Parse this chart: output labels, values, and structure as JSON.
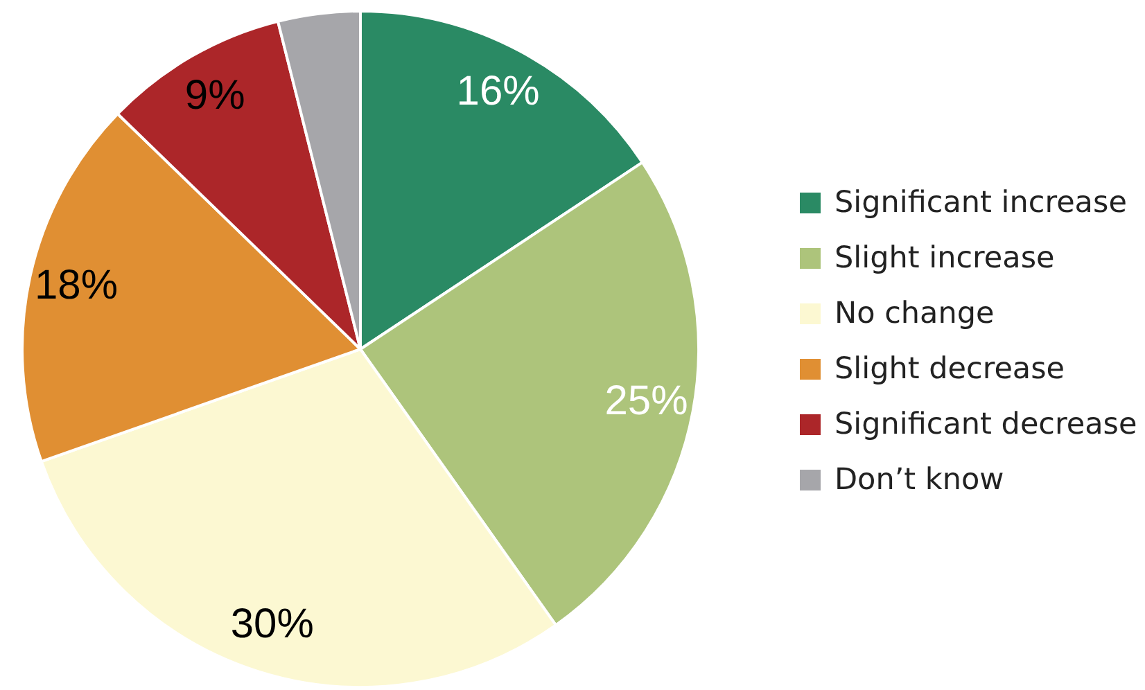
{
  "chart_data": {
    "type": "pie",
    "categories": [
      "Significant increase",
      "Slight increase",
      "No change",
      "Slight decrease",
      "Significant decrease",
      "Don’t know"
    ],
    "values": [
      16,
      25,
      30,
      18,
      9,
      4
    ],
    "colors": [
      "#2a8a64",
      "#adc47b",
      "#fcf8d2",
      "#e08f33",
      "#ac2629",
      "#a6a6aa"
    ],
    "value_labels": [
      "16%",
      "25%",
      "30%",
      "18%",
      "9%",
      null
    ],
    "legend": "right"
  }
}
